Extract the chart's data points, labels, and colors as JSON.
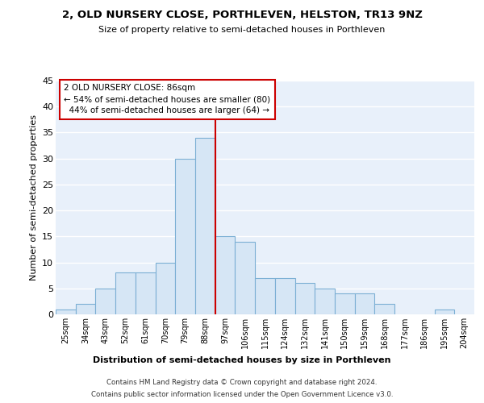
{
  "title": "2, OLD NURSERY CLOSE, PORTHLEVEN, HELSTON, TR13 9NZ",
  "subtitle": "Size of property relative to semi-detached houses in Porthleven",
  "xlabel": "Distribution of semi-detached houses by size in Porthleven",
  "ylabel": "Number of semi-detached properties",
  "bin_labels": [
    "25sqm",
    "34sqm",
    "43sqm",
    "52sqm",
    "61sqm",
    "70sqm",
    "79sqm",
    "88sqm",
    "97sqm",
    "106sqm",
    "115sqm",
    "124sqm",
    "132sqm",
    "141sqm",
    "150sqm",
    "159sqm",
    "168sqm",
    "177sqm",
    "186sqm",
    "195sqm",
    "204sqm"
  ],
  "bar_heights": [
    1,
    2,
    5,
    8,
    8,
    10,
    30,
    34,
    15,
    14,
    7,
    7,
    6,
    5,
    4,
    4,
    2,
    0,
    0,
    1,
    0
  ],
  "bar_color": "#d6e6f5",
  "bar_edge_color": "#7bafd4",
  "plot_bg_color": "#e8f0fa",
  "fig_bg_color": "#ffffff",
  "grid_color": "#ffffff",
  "property_label": "2 OLD NURSERY CLOSE: 86sqm",
  "smaller_pct": 54,
  "smaller_count": 80,
  "larger_pct": 44,
  "larger_count": 64,
  "vline_color": "#cc0000",
  "annotation_box_edge": "#cc0000",
  "annotation_box_face": "#ffffff",
  "ylim": [
    0,
    45
  ],
  "yticks": [
    0,
    5,
    10,
    15,
    20,
    25,
    30,
    35,
    40,
    45
  ],
  "vline_x_index": 7.5,
  "footer_line1": "Contains HM Land Registry data © Crown copyright and database right 2024.",
  "footer_line2": "Contains public sector information licensed under the Open Government Licence v3.0."
}
